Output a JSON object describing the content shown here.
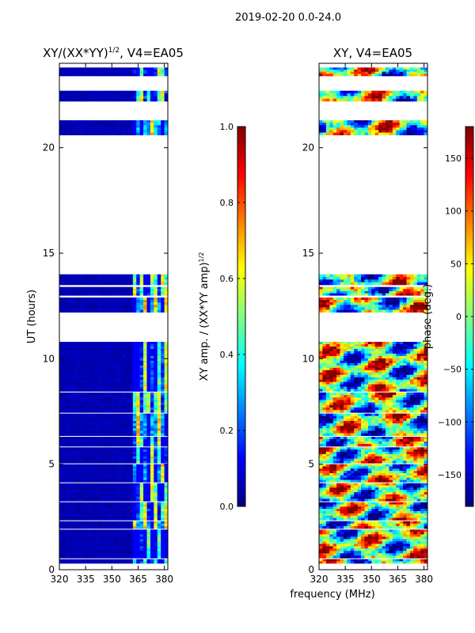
{
  "suptitle": "2019-02-20 0.0-24.0",
  "xlabel": "frequency (MHz)",
  "x_ticks": [
    320,
    335,
    350,
    365,
    380
  ],
  "x_range": [
    320,
    382
  ],
  "y_range": [
    0,
    24
  ],
  "colors": {
    "jet_stops": [
      "#000080",
      "#0000ff",
      "#0080ff",
      "#00ffff",
      "#80ff80",
      "#ffff00",
      "#ff8000",
      "#ff0000",
      "#800000"
    ],
    "background": "#ffffff",
    "axes": "#000000"
  },
  "panels": {
    "amp": {
      "title": "XY/(XX*YY)",
      "title_sup": "1/2",
      "title_tail": ", V4=EA05",
      "ylabel": "UT (hours)",
      "y_ticks": [
        "0",
        "5",
        "10",
        "15",
        "20"
      ]
    },
    "phase": {
      "title": "XY, V4=EA05",
      "y_ticks": [
        "0",
        "5",
        "10",
        "15",
        "20"
      ]
    }
  },
  "colorbar_amp": {
    "label": "XY amp. / (XX*YY amp)",
    "label_sup": "1/2",
    "ticks": [
      "0.0",
      "0.2",
      "0.4",
      "0.6",
      "0.8",
      "1.0"
    ],
    "tick_values": [
      0.0,
      0.2,
      0.4,
      0.6,
      0.8,
      1.0
    ],
    "range": [
      0,
      1
    ]
  },
  "colorbar_phase": {
    "label": "phase (deg.)",
    "ticks": [
      "−150",
      "−100",
      "−50",
      "0",
      "50",
      "100",
      "150"
    ],
    "tick_values": [
      -150,
      -100,
      -50,
      0,
      50,
      100,
      150
    ],
    "range": [
      -180,
      180
    ]
  },
  "chart_data": {
    "type": "heatmap",
    "title": "2019-02-20 0.0-24.0",
    "xlabel": "frequency (MHz)",
    "ylabel": "UT (hours)",
    "xlim": [
      320,
      382
    ],
    "ylim": [
      0,
      24
    ],
    "data_segments_hours": [
      [
        0.3,
        0.5
      ],
      [
        0.55,
        1.9
      ],
      [
        1.95,
        2.3
      ],
      [
        2.35,
        3.2
      ],
      [
        3.25,
        4.1
      ],
      [
        4.15,
        5.0
      ],
      [
        5.05,
        5.8
      ],
      [
        5.85,
        6.3
      ],
      [
        6.35,
        7.4
      ],
      [
        7.45,
        8.4
      ],
      [
        8.45,
        10.8
      ],
      [
        12.2,
        12.9
      ],
      [
        13.0,
        13.4
      ],
      [
        13.5,
        14.0
      ],
      [
        20.6,
        21.3
      ],
      [
        22.2,
        22.7
      ],
      [
        23.4,
        23.8
      ]
    ],
    "amp_bright_band_mhz": [
      362,
      381
    ],
    "panels": [
      "XY/(XX*YY)^1/2 amplitude",
      "XY phase (deg)"
    ]
  }
}
